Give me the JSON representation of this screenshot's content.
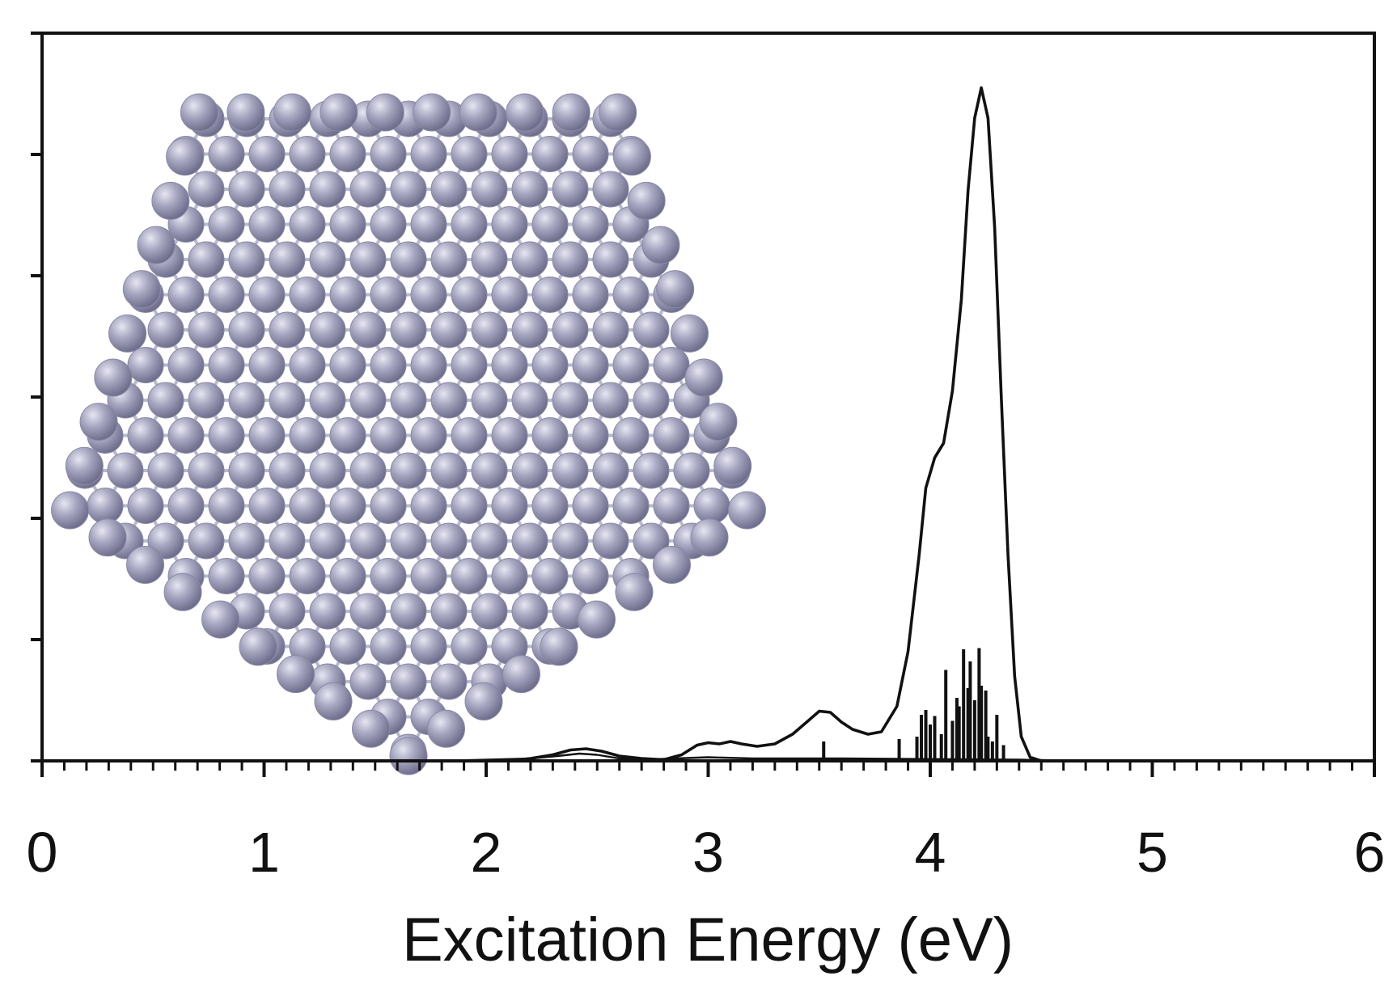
{
  "chart_data": {
    "type": "line",
    "xlabel": "Excitation Energy (eV)",
    "ylabel": "",
    "xlim": [
      0,
      6
    ],
    "ylim": [
      0,
      6
    ],
    "x_major_ticks": [
      0,
      1,
      2,
      3,
      4,
      5,
      6
    ],
    "x_tick_labels": [
      "0",
      "1",
      "2",
      "3",
      "4",
      "5",
      "6"
    ],
    "x_minor_step": 0.1,
    "y_ticks": [
      0,
      1,
      2,
      3,
      4,
      5,
      6
    ],
    "y_tick_labels_shown": false,
    "grid": false,
    "legend": "none",
    "series": [
      {
        "kind": "line",
        "color": "#111111",
        "points": [
          [
            0.05,
            0.0
          ],
          [
            1.0,
            0.0
          ],
          [
            1.8,
            0.0
          ],
          [
            2.1,
            0.0
          ],
          [
            2.2,
            0.02
          ],
          [
            2.3,
            0.05
          ],
          [
            2.38,
            0.09
          ],
          [
            2.45,
            0.1
          ],
          [
            2.52,
            0.08
          ],
          [
            2.6,
            0.04
          ],
          [
            2.7,
            0.02
          ],
          [
            2.8,
            0.01
          ],
          [
            2.88,
            0.05
          ],
          [
            2.95,
            0.13
          ],
          [
            3.0,
            0.15
          ],
          [
            3.05,
            0.14
          ],
          [
            3.1,
            0.16
          ],
          [
            3.15,
            0.14
          ],
          [
            3.22,
            0.12
          ],
          [
            3.3,
            0.14
          ],
          [
            3.38,
            0.22
          ],
          [
            3.45,
            0.33
          ],
          [
            3.5,
            0.41
          ],
          [
            3.55,
            0.4
          ],
          [
            3.6,
            0.32
          ],
          [
            3.65,
            0.26
          ],
          [
            3.72,
            0.22
          ],
          [
            3.78,
            0.24
          ],
          [
            3.85,
            0.45
          ],
          [
            3.9,
            0.9
          ],
          [
            3.95,
            1.7
          ],
          [
            3.98,
            2.25
          ],
          [
            4.02,
            2.5
          ],
          [
            4.06,
            2.62
          ],
          [
            4.1,
            3.05
          ],
          [
            4.14,
            3.8
          ],
          [
            4.17,
            4.7
          ],
          [
            4.2,
            5.3
          ],
          [
            4.23,
            5.55
          ],
          [
            4.26,
            5.3
          ],
          [
            4.29,
            4.4
          ],
          [
            4.32,
            3.0
          ],
          [
            4.35,
            1.7
          ],
          [
            4.38,
            0.7
          ],
          [
            4.41,
            0.2
          ],
          [
            4.45,
            0.03
          ],
          [
            4.5,
            0.0
          ],
          [
            6.0,
            0.0
          ]
        ]
      },
      {
        "kind": "line",
        "color": "#111111",
        "points": [
          [
            1.8,
            0.0
          ],
          [
            2.2,
            0.02
          ],
          [
            2.32,
            0.04
          ],
          [
            2.42,
            0.06
          ],
          [
            2.5,
            0.05
          ],
          [
            2.6,
            0.02
          ],
          [
            2.7,
            0.01
          ],
          [
            2.85,
            0.02
          ],
          [
            3.0,
            0.03
          ],
          [
            3.2,
            0.02
          ],
          [
            3.4,
            0.02
          ],
          [
            3.6,
            0.02
          ],
          [
            4.4,
            0.01
          ],
          [
            4.7,
            0.0
          ]
        ]
      },
      {
        "kind": "stick",
        "color": "#111111",
        "x": [
          3.52,
          3.86,
          3.94,
          3.96,
          3.98,
          4.0,
          4.02,
          4.05,
          4.07,
          4.1,
          4.12,
          4.13,
          4.15,
          4.17,
          4.18,
          4.2,
          4.22,
          4.23,
          4.25,
          4.26,
          4.28,
          4.3,
          4.33
        ],
        "values": [
          0.16,
          0.18,
          0.2,
          0.38,
          0.42,
          0.3,
          0.37,
          0.22,
          0.75,
          0.33,
          0.52,
          0.45,
          0.92,
          0.6,
          0.82,
          0.5,
          0.93,
          0.62,
          0.58,
          0.2,
          0.16,
          0.38,
          0.13
        ]
      }
    ]
  },
  "inset": {
    "kind": "cluster-illustration",
    "atom_color": "#9a9ab5",
    "bond_color": "#b9b9cf",
    "shape": "pentagon"
  }
}
